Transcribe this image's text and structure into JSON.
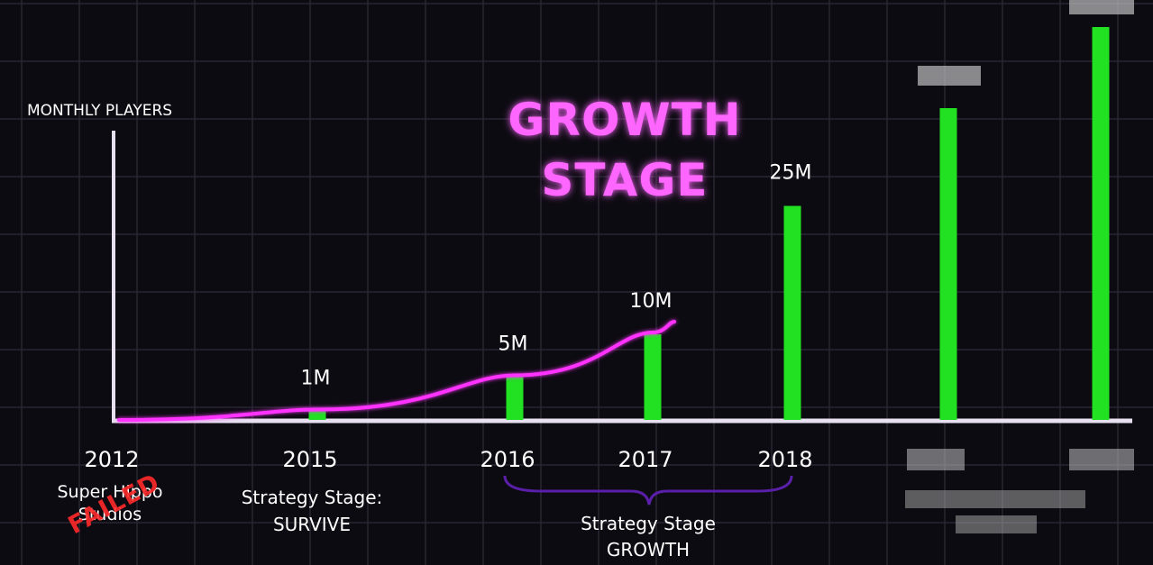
{
  "title": {
    "line1": "GROWTH",
    "line2": "STAGE"
  },
  "colors": {
    "background": "#0d0b12",
    "grid": "#2a2533",
    "axis": "#e6e0f0",
    "bars": "#22e022",
    "line": "#ff33ff",
    "title": "#ff66ff",
    "brace": "#5a1fa8",
    "failed_stamp": "#ff2a2a"
  },
  "axis": {
    "ylabel": "MONTHLY PLAYERS"
  },
  "annotations": {
    "start_company_line1": "Super Hippo",
    "start_company_line2": "Studios",
    "failed_stamp": "FAILED",
    "survive_line1": "Strategy Stage:",
    "survive_line2": "SURVIVE",
    "growth_line1": "Strategy Stage",
    "growth_line2": "GROWTH"
  },
  "chart_data": {
    "type": "bar",
    "ylabel": "MONTHLY PLAYERS",
    "categories": [
      "2012",
      "2015",
      "2016",
      "2017",
      "2018",
      "",
      ""
    ],
    "values": [
      0,
      1,
      5,
      10,
      25,
      null,
      null
    ],
    "value_labels": [
      "",
      "1M",
      "5M",
      "10M",
      "25M",
      "",
      ""
    ],
    "units": "million monthly players",
    "obscured_bars": "two bars right of 2018 are pixelated; their values and year labels are unreadable",
    "trend_line": {
      "type": "line",
      "color": "#ff33ff",
      "x": [
        "2012",
        "2015",
        "2016",
        "2017"
      ],
      "y": [
        0,
        1,
        5,
        10
      ]
    },
    "grid": true,
    "legend": "none"
  }
}
